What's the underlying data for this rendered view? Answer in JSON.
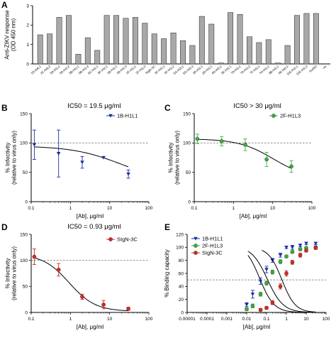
{
  "panel_labels": {
    "A": "A",
    "B": "B",
    "C": "C",
    "D": "D",
    "E": "E"
  },
  "chart_data": [
    {
      "panel": "A",
      "type": "bar",
      "ylabel": "Anti-ZIKV response\n(OD 450 nm)",
      "ylim": [
        0,
        3
      ],
      "yticks": [
        "0",
        "1",
        "2",
        "3"
      ],
      "categories": [
        "1D-H4L1",
        "2C-H4L2",
        "5A-H1L1",
        "5A-H1L2",
        "5B-H1L1",
        "5B-H1L3",
        "6C-H1L1",
        "6F-H1L1",
        "1B-H1L1",
        "1B-H1L3",
        "2F-H1L1",
        "2F-H1L3",
        "SIgN-3C",
        "5F-H1L1",
        "5F-H1L2",
        "5G-H2L1",
        "5G-H2L3",
        "3A-H1L1",
        "3D-H1L1",
        "4D-H2L1",
        "6E-H1L1",
        "7A-H1L1",
        "7A-H1L2",
        "7F-H1L1",
        "7H-H1L1",
        "8B-H1L1",
        "9E-H2L1",
        "11E-H1L1",
        "11E-H1L2",
        "hu4D2",
        "-ve"
      ],
      "values": [
        1.5,
        1.55,
        2.4,
        2.5,
        0.5,
        1.35,
        0.7,
        2.5,
        2.5,
        2.35,
        2.4,
        2.1,
        1.55,
        1.3,
        1.6,
        1.2,
        0.95,
        2.45,
        2.05,
        0.05,
        2.65,
        2.55,
        1.4,
        1.1,
        1.25,
        0.05,
        0.95,
        2.5,
        2.6,
        2.6,
        0
      ],
      "bar_color": "#a8a8a8"
    },
    {
      "panel": "B",
      "type": "line",
      "title": "IC50 = 19.5 μg/ml",
      "xlabel": "[Ab], μg/ml",
      "ylabel": "% Infectivity\n(relative to virus only)",
      "xscale": "log",
      "xlim": [
        0.1,
        100
      ],
      "ylim": [
        0,
        150
      ],
      "xticks": [
        "0.1",
        "1",
        "10",
        "100"
      ],
      "yticks": [
        "0",
        "50",
        "100",
        "150"
      ],
      "reference_y": 100,
      "series": [
        {
          "name": "1B-H1L1",
          "color": "#1a2ea8",
          "marker": "triangle-down",
          "x": [
            0.12,
            0.5,
            2,
            30
          ],
          "y": [
            97,
            82,
            67,
            47
          ],
          "err": [
            25,
            40,
            10,
            7
          ],
          "extra_points": [
            {
              "x": 7,
              "y": 75
            }
          ],
          "fit": {
            "bottom": 33,
            "top": 95,
            "ic50": 19.5,
            "hill": 0.7
          }
        }
      ]
    },
    {
      "panel": "C",
      "type": "line",
      "title": "IC50 > 30 μg/ml",
      "xlabel": "[Ab], μg/ml",
      "ylabel": "% Infectivity\n(relative to virus only)",
      "xscale": "log",
      "xlim": [
        0.1,
        100
      ],
      "ylim": [
        0,
        150
      ],
      "xticks": [
        "0.1",
        "1",
        "10",
        "100"
      ],
      "yticks": [
        "0",
        "50",
        "100",
        "150"
      ],
      "reference_y": 100,
      "series": [
        {
          "name": "2F-H1L3",
          "color": "#3aae3a",
          "marker": "circle",
          "x": [
            0.12,
            0.5,
            2,
            7,
            30
          ],
          "y": [
            107,
            103,
            97,
            72,
            60
          ],
          "err": [
            8,
            8,
            10,
            12,
            10
          ],
          "fit": {
            "bottom": 40,
            "top": 107,
            "ic50": 10,
            "hill": 1.0
          }
        }
      ]
    },
    {
      "panel": "D",
      "type": "line",
      "title": "IC50 = 0.93 μg/ml",
      "xlabel": "[Ab], μg/ml",
      "ylabel": "% Infectivity\n(relative to virus only)",
      "xscale": "log",
      "xlim": [
        0.1,
        100
      ],
      "ylim": [
        0,
        150
      ],
      "xticks": [
        "0.1",
        "1",
        "10",
        "100"
      ],
      "yticks": [
        "0",
        "50",
        "100",
        "150"
      ],
      "reference_y": 100,
      "series": [
        {
          "name": "SIgN-3C",
          "color": "#d42a20",
          "marker": "circle",
          "x": [
            0.12,
            0.5,
            2,
            7,
            30
          ],
          "y": [
            107,
            82,
            30,
            15,
            7
          ],
          "err": [
            15,
            12,
            5,
            8,
            3
          ],
          "fit": {
            "bottom": 2,
            "top": 112,
            "ic50": 0.93,
            "hill": 1.3
          }
        }
      ]
    },
    {
      "panel": "E",
      "type": "line",
      "xlabel": "[Ab], μg/ml",
      "ylabel": "% Binding capacity",
      "xscale": "log",
      "xlim": [
        1e-05,
        100
      ],
      "ylim": [
        0,
        120
      ],
      "xticks": [
        "0.00001",
        "0.0001",
        "0.001",
        "0.01",
        "0.1",
        "1",
        "10",
        "100"
      ],
      "yticks": [
        "0",
        "20",
        "40",
        "60",
        "80",
        "100",
        "120"
      ],
      "reference_y": 50,
      "legend_position": "top-left",
      "series": [
        {
          "name": "1B-H1L1",
          "color": "#1a2ea8",
          "marker": "triangle-down",
          "x": [
            0.01,
            0.02,
            0.05,
            0.1,
            0.2,
            0.5,
            1,
            2,
            5,
            10,
            30
          ],
          "y": [
            12,
            28,
            48,
            66,
            80,
            88,
            100,
            100,
            103,
            106,
            106
          ],
          "err": [
            3,
            6,
            5,
            5,
            3,
            3,
            2,
            3,
            2,
            2,
            2
          ],
          "fit": {
            "bottom": 0,
            "top": 105,
            "ic50": 0.045,
            "hill": 1.2
          }
        },
        {
          "name": "2F-H1L3",
          "color": "#3aae3a",
          "marker": "circle",
          "x": [
            0.01,
            0.02,
            0.05,
            0.1,
            0.2,
            0.5,
            1,
            2,
            5,
            10,
            30
          ],
          "y": [
            5,
            10,
            28,
            45,
            62,
            78,
            86,
            93,
            97,
            99,
            100
          ],
          "err": [
            2,
            3,
            3,
            3,
            3,
            3,
            2,
            2,
            2,
            2,
            2
          ],
          "fit": {
            "bottom": 0,
            "top": 102,
            "ic50": 0.11,
            "hill": 1.1
          }
        },
        {
          "name": "SIgN-3C",
          "color": "#d42a20",
          "marker": "circle",
          "x": [
            0.05,
            0.1,
            0.2,
            0.5,
            1,
            2,
            5,
            10,
            30
          ],
          "y": [
            4,
            7,
            15,
            40,
            60,
            77,
            88,
            95,
            99
          ],
          "err": [
            2,
            2,
            3,
            4,
            4,
            3,
            3,
            2,
            2
          ],
          "fit": {
            "bottom": 0,
            "top": 100,
            "ic50": 0.6,
            "hill": 1.3
          }
        }
      ]
    }
  ]
}
